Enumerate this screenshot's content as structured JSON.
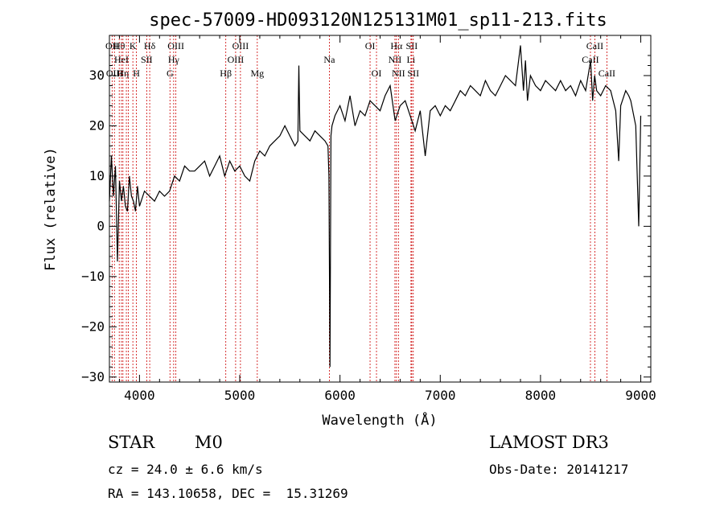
{
  "chart_data": {
    "type": "line",
    "title": "spec-57009-HD093120N125131M01_sp11-213.fits",
    "xlabel": "Wavelength (Å)",
    "ylabel": "Flux (relative)",
    "xlim": [
      3700,
      9100
    ],
    "ylim": [
      -31,
      38
    ],
    "x_ticks": [
      4000,
      5000,
      6000,
      7000,
      8000,
      9000
    ],
    "y_ticks": [
      -30,
      -20,
      -10,
      0,
      10,
      20,
      30
    ],
    "grid": false,
    "line_color": "#000000",
    "marker_color": "#cc0000",
    "series": [
      {
        "x": [
          3700,
          3720,
          3740,
          3760,
          3780,
          3800,
          3820,
          3840,
          3860,
          3880,
          3900,
          3920,
          3940,
          3960,
          3980,
          4000,
          4050,
          4100,
          4150,
          4200,
          4250,
          4300,
          4350,
          4400,
          4450,
          4500,
          4550,
          4600,
          4650,
          4700,
          4750,
          4800,
          4850,
          4900,
          4950,
          5000,
          5050,
          5100,
          5150,
          5200,
          5250,
          5300,
          5350,
          5400,
          5450,
          5500,
          5550,
          5580,
          5590,
          5600,
          5650,
          5700,
          5750,
          5800,
          5850,
          5880,
          5890,
          5900,
          5905,
          5910,
          5920,
          5950,
          6000,
          6050,
          6100,
          6150,
          6200,
          6250,
          6300,
          6350,
          6400,
          6450,
          6500,
          6550,
          6600,
          6650,
          6700,
          6750,
          6800,
          6850,
          6900,
          6950,
          7000,
          7050,
          7100,
          7150,
          7200,
          7250,
          7300,
          7350,
          7400,
          7450,
          7500,
          7550,
          7600,
          7650,
          7700,
          7750,
          7800,
          7830,
          7850,
          7870,
          7900,
          7950,
          8000,
          8050,
          8100,
          8150,
          8200,
          8250,
          8300,
          8350,
          8400,
          8450,
          8500,
          8520,
          8540,
          8560,
          8600,
          8650,
          8700,
          8750,
          8780,
          8800,
          8850,
          8880,
          8900,
          8950,
          8980,
          9000
        ],
        "y": [
          5,
          14,
          6,
          12,
          -7,
          9,
          5,
          8,
          4,
          3,
          10,
          6,
          5,
          3,
          8,
          4,
          7,
          6,
          5,
          7,
          6,
          7,
          10,
          9,
          12,
          11,
          11,
          12,
          13,
          10,
          12,
          14,
          10,
          13,
          11,
          12,
          10,
          9,
          13,
          15,
          14,
          16,
          17,
          18,
          20,
          18,
          16,
          17,
          32,
          19,
          18,
          17,
          19,
          18,
          17,
          16,
          10,
          -28,
          -5,
          18,
          20,
          22,
          24,
          21,
          26,
          20,
          23,
          22,
          25,
          24,
          23,
          26,
          28,
          21,
          24,
          25,
          22,
          19,
          23,
          14,
          23,
          24,
          22,
          24,
          23,
          25,
          27,
          26,
          28,
          27,
          26,
          29,
          27,
          26,
          28,
          30,
          29,
          28,
          36,
          27,
          33,
          25,
          30,
          28,
          27,
          29,
          28,
          27,
          29,
          27,
          28,
          26,
          29,
          27,
          33,
          25,
          30,
          27,
          26,
          28,
          27,
          23,
          13,
          24,
          27,
          26,
          25,
          20,
          0,
          22
        ]
      }
    ],
    "lines": [
      {
        "w": 3727,
        "top": "OII",
        "mid": "",
        "bot": ""
      },
      {
        "w": 3750,
        "top": "",
        "mid": "",
        "bot": "OIII"
      },
      {
        "w": 3798,
        "top": "Hθ",
        "mid": "",
        "bot": ""
      },
      {
        "w": 3820,
        "top": "",
        "mid": "HeI",
        "bot": ""
      },
      {
        "w": 3835,
        "top": "",
        "mid": "",
        "bot": "Hη"
      },
      {
        "w": 3869,
        "top": "",
        "mid": "",
        "bot": ""
      },
      {
        "w": 3889,
        "top": "",
        "mid": "",
        "bot": ""
      },
      {
        "w": 3934,
        "top": "K",
        "mid": "",
        "bot": ""
      },
      {
        "w": 3969,
        "top": "",
        "mid": "",
        "bot": "H"
      },
      {
        "w": 4072,
        "top": "",
        "mid": "SII",
        "bot": ""
      },
      {
        "w": 4102,
        "top": "Hδ",
        "mid": "",
        "bot": ""
      },
      {
        "w": 4304,
        "top": "",
        "mid": "",
        "bot": "G"
      },
      {
        "w": 4341,
        "top": "",
        "mid": "Hγ",
        "bot": ""
      },
      {
        "w": 4363,
        "top": "OIII",
        "mid": "",
        "bot": ""
      },
      {
        "w": 4861,
        "top": "",
        "mid": "",
        "bot": "Hβ"
      },
      {
        "w": 4959,
        "top": "",
        "mid": "OIII",
        "bot": ""
      },
      {
        "w": 5007,
        "top": "OIII",
        "mid": "",
        "bot": ""
      },
      {
        "w": 5175,
        "top": "",
        "mid": "",
        "bot": "Mg"
      },
      {
        "w": 5894,
        "top": "",
        "mid": "Na",
        "bot": ""
      },
      {
        "w": 6300,
        "top": "OI",
        "mid": "",
        "bot": ""
      },
      {
        "w": 6364,
        "top": "",
        "mid": "",
        "bot": "OI"
      },
      {
        "w": 6548,
        "top": "",
        "mid": "NII",
        "bot": ""
      },
      {
        "w": 6563,
        "top": "Hα",
        "mid": "",
        "bot": ""
      },
      {
        "w": 6583,
        "top": "",
        "mid": "",
        "bot": "NII"
      },
      {
        "w": 6708,
        "top": "",
        "mid": "Li",
        "bot": ""
      },
      {
        "w": 6716,
        "top": "SII",
        "mid": "",
        "bot": ""
      },
      {
        "w": 6731,
        "top": "",
        "mid": "",
        "bot": "SII"
      },
      {
        "w": 8498,
        "top": "",
        "mid": "CaII",
        "bot": ""
      },
      {
        "w": 8542,
        "top": "CaII",
        "mid": "",
        "bot": ""
      },
      {
        "w": 8662,
        "top": "",
        "mid": "",
        "bot": "CaII"
      }
    ]
  },
  "info": {
    "class": "STAR",
    "subclass": "M0",
    "survey": "LAMOST DR3",
    "cz": "cz = 24.0 ± 6.6 km/s",
    "obs_date": "Obs-Date: 20141217",
    "coords": "RA = 143.10658, DEC =  15.31269"
  }
}
